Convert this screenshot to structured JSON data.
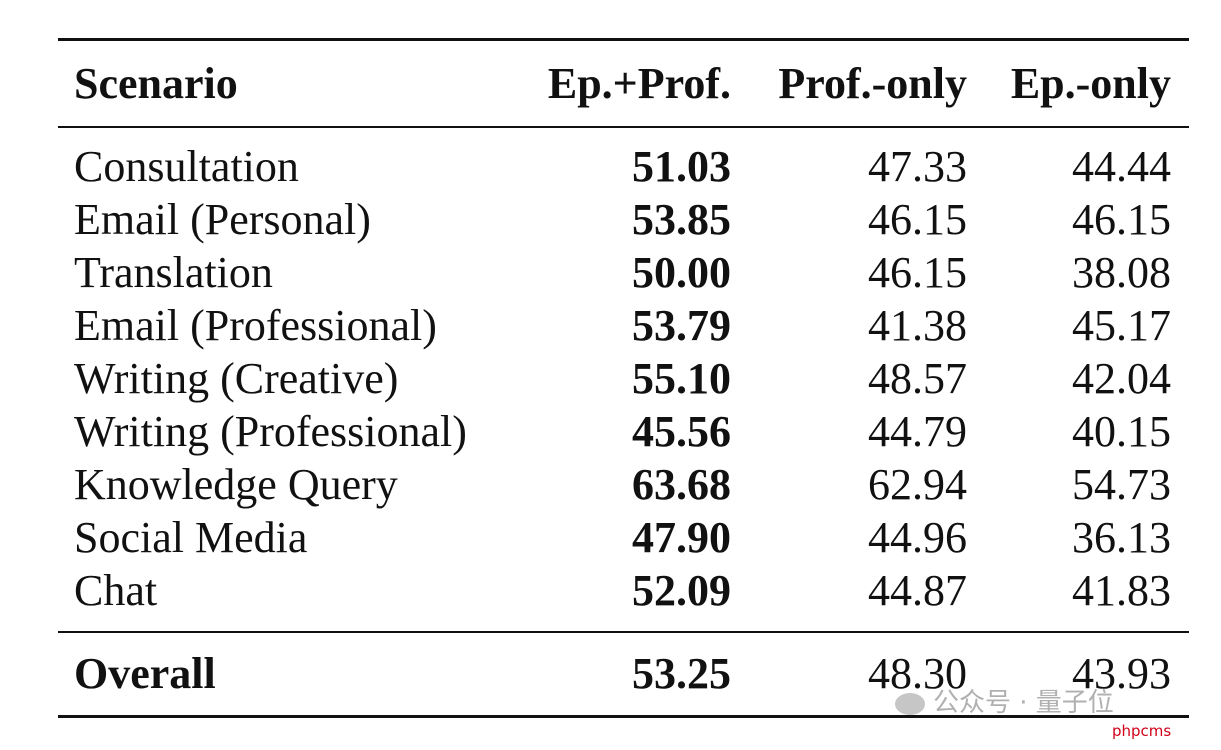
{
  "table": {
    "headers": [
      "Scenario",
      "Ep.+Prof.",
      "Prof.-only",
      "Ep.-only"
    ],
    "rows": [
      [
        "Consultation",
        "51.03",
        "47.33",
        "44.44"
      ],
      [
        "Email (Personal)",
        "53.85",
        "46.15",
        "46.15"
      ],
      [
        "Translation",
        "50.00",
        "46.15",
        "38.08"
      ],
      [
        "Email (Professional)",
        "53.79",
        "41.38",
        "45.17"
      ],
      [
        "Writing (Creative)",
        "55.10",
        "48.57",
        "42.04"
      ],
      [
        "Writing (Professional)",
        "45.56",
        "44.79",
        "40.15"
      ],
      [
        "Knowledge Query",
        "63.68",
        "62.94",
        "54.73"
      ],
      [
        "Social Media",
        "47.90",
        "44.96",
        "36.13"
      ],
      [
        "Chat",
        "52.09",
        "44.87",
        "41.83"
      ]
    ],
    "overall": [
      "Overall",
      "53.25",
      "48.30",
      "43.93"
    ]
  },
  "watermark": {
    "text": "公众号 · 量子位",
    "icon": "wechat-icon"
  },
  "brand": "phpcms"
}
